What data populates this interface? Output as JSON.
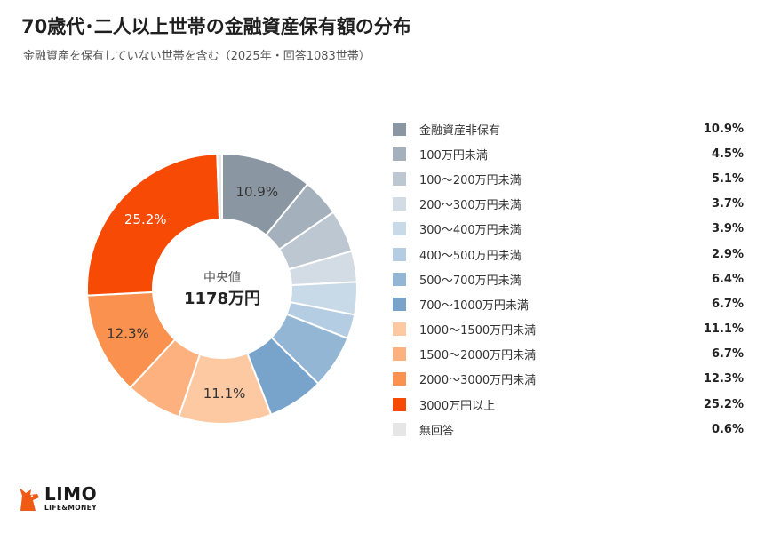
{
  "title": "70歳代･二人以上世帯の金融資産保有額の分布",
  "subtitle": "金融資産を保有していない世帯を含む（2025年・回答1083世帯）",
  "center": {
    "label": "中央値",
    "value": "1178万円"
  },
  "brand": {
    "name": "LIMO",
    "tagline": "LIFE&MONEY"
  },
  "chart_data": {
    "type": "pie",
    "categories": [
      "金融資産非保有",
      "100万円未満",
      "100〜200万円未満",
      "200〜300万円未満",
      "300〜400万円未満",
      "400〜500万円未満",
      "500〜700万円未満",
      "700〜1000万円未満",
      "1000〜1500万円未満",
      "1500〜2000万円未満",
      "2000〜3000万円未満",
      "3000万円以上",
      "無回答"
    ],
    "values": [
      10.9,
      4.5,
      5.1,
      3.7,
      3.9,
      2.9,
      6.4,
      6.7,
      11.1,
      6.7,
      12.3,
      25.2,
      0.6
    ],
    "value_labels": [
      "10.9%",
      "4.5%",
      "5.1%",
      "3.7%",
      "3.9%",
      "2.9%",
      "6.4%",
      "6.7%",
      "11.1%",
      "6.7%",
      "12.3%",
      "25.2%",
      "0.6%"
    ],
    "colors": [
      "#8a97a3",
      "#a4b0bc",
      "#bcc7d2",
      "#d3dce5",
      "#c8d9e8",
      "#b4cde2",
      "#94b6d5",
      "#78a4cc",
      "#fdc9a3",
      "#fcb17f",
      "#fa914e",
      "#f74a05",
      "#e6e6e6"
    ],
    "slice_labels_shown": [
      "10.9%",
      "",
      "",
      "",
      "",
      "",
      "",
      "",
      "11.1%",
      "",
      "12.3%",
      "25.2%",
      ""
    ],
    "legend_position": "right"
  }
}
